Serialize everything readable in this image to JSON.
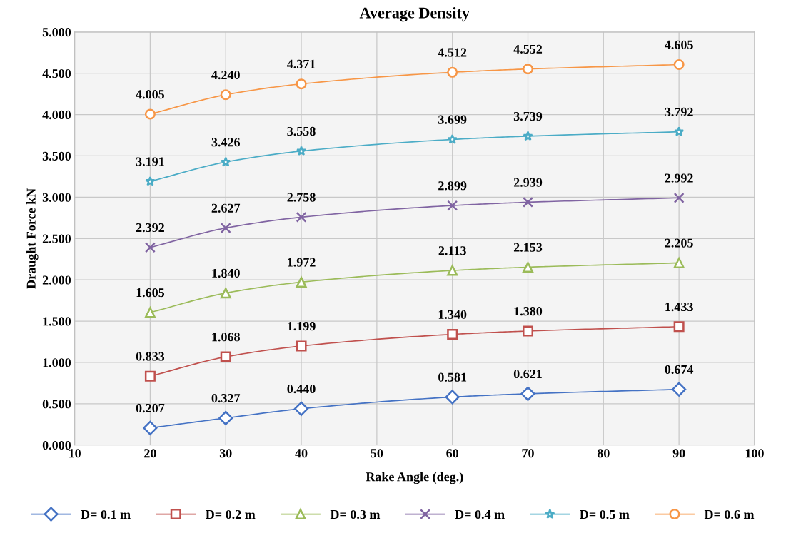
{
  "chart_data": {
    "type": "line",
    "title": "Average Density",
    "xlabel": "Rake Angle (deg.)",
    "ylabel": "Draught Force kN",
    "x": [
      20,
      30,
      40,
      60,
      70,
      90
    ],
    "series": [
      {
        "name": "D= 0.1 m",
        "color": "#4472c4",
        "marker": "diamond",
        "values": [
          0.207,
          0.327,
          0.44,
          0.581,
          0.621,
          0.674
        ],
        "value_labels": [
          "0.207",
          "0.327",
          "0.440",
          "0.581",
          "0.621",
          "0.674"
        ]
      },
      {
        "name": "D= 0.2 m",
        "color": "#c0504d",
        "marker": "square",
        "values": [
          0.833,
          1.068,
          1.199,
          1.34,
          1.38,
          1.433
        ],
        "value_labels": [
          "0.833",
          "1.068",
          "1.199",
          "1.340",
          "1.380",
          "1.433"
        ]
      },
      {
        "name": "D= 0.3 m",
        "color": "#9bbb59",
        "marker": "triangle",
        "values": [
          1.605,
          1.84,
          1.972,
          2.113,
          2.153,
          2.205
        ],
        "value_labels": [
          "1.605",
          "1.840",
          "1.972",
          "2.113",
          "2.153",
          "2.205"
        ]
      },
      {
        "name": "D= 0.4 m",
        "color": "#8064a2",
        "marker": "cross",
        "values": [
          2.392,
          2.627,
          2.758,
          2.899,
          2.939,
          2.992
        ],
        "value_labels": [
          "2.392",
          "2.627",
          "2.758",
          "2.899",
          "2.939",
          "2.992"
        ]
      },
      {
        "name": "D= 0.5 m",
        "color": "#4bacc6",
        "marker": "star",
        "values": [
          3.191,
          3.426,
          3.558,
          3.699,
          3.739,
          3.792
        ],
        "value_labels": [
          "3.191",
          "3.426",
          "3.558",
          "3.699",
          "3.739",
          "3.792"
        ]
      },
      {
        "name": "D= 0.6 m",
        "color": "#f79646",
        "marker": "circle",
        "values": [
          4.005,
          4.24,
          4.371,
          4.512,
          4.552,
          4.605
        ],
        "value_labels": [
          "4.005",
          "4.240",
          "4.371",
          "4.512",
          "4.552",
          "4.605"
        ]
      }
    ],
    "xlim": [
      10,
      100
    ],
    "xticks": [
      10,
      20,
      30,
      40,
      50,
      60,
      70,
      80,
      90,
      100
    ],
    "ylim": [
      0,
      5
    ],
    "yticks": [
      {
        "value": 0,
        "label": "0.000"
      },
      {
        "value": 0.5,
        "label": "0.500"
      },
      {
        "value": 1,
        "label": "1.000"
      },
      {
        "value": 1.5,
        "label": "1.500"
      },
      {
        "value": 2,
        "label": "2.000"
      },
      {
        "value": 2.5,
        "label": "2.500"
      },
      {
        "value": 3,
        "label": "3.000"
      },
      {
        "value": 3.5,
        "label": "3.500"
      },
      {
        "value": 4,
        "label": "4.000"
      },
      {
        "value": 4.5,
        "label": "4.500"
      },
      {
        "value": 5,
        "label": "5.000"
      }
    ],
    "grid": true,
    "legend": "bottom",
    "line_style": "solid"
  }
}
